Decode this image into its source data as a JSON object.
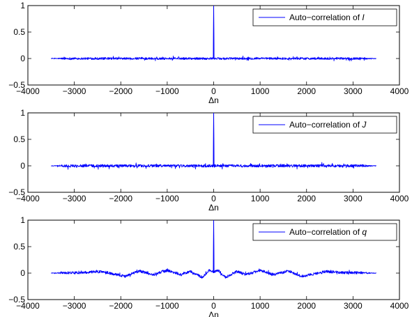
{
  "chart_data": [
    {
      "type": "line",
      "xlabel": "Δn",
      "ylabel": "",
      "xlim": [
        -4000,
        4000
      ],
      "ylim": [
        -0.5,
        1
      ],
      "xticks": [
        -4000,
        -3000,
        -2000,
        -1000,
        0,
        1000,
        2000,
        3000,
        4000
      ],
      "yticks": [
        -0.5,
        0,
        0.5,
        1
      ],
      "legend_position": "top-right",
      "series": [
        {
          "name": "Auto−correlation of I",
          "name_prefix": "Auto−correlation of ",
          "name_var": "I",
          "color": "#0000ff",
          "x_range": [
            -3500,
            3500
          ],
          "peak": {
            "x": 0,
            "y": 1
          },
          "noise_amplitude": 0.02,
          "noise_spikes": 0.035,
          "ripple_amplitude": 0
        }
      ]
    },
    {
      "type": "line",
      "xlabel": "Δn",
      "ylabel": "",
      "xlim": [
        -4000,
        4000
      ],
      "ylim": [
        -0.5,
        1
      ],
      "xticks": [
        -4000,
        -3000,
        -2000,
        -1000,
        0,
        1000,
        2000,
        3000,
        4000
      ],
      "yticks": [
        -0.5,
        0,
        0.5,
        1
      ],
      "legend_position": "top-right",
      "series": [
        {
          "name": "Auto−correlation of J",
          "name_prefix": "Auto−correlation of ",
          "name_var": "J",
          "color": "#0000ff",
          "x_range": [
            -3500,
            3500
          ],
          "peak": {
            "x": 0,
            "y": 1
          },
          "noise_amplitude": 0.025,
          "noise_spikes": 0.05,
          "ripple_amplitude": 0
        }
      ]
    },
    {
      "type": "line",
      "xlabel": "Δn",
      "ylabel": "",
      "xlim": [
        -4000,
        4000
      ],
      "ylim": [
        -0.5,
        1
      ],
      "xticks": [
        -4000,
        -3000,
        -2000,
        -1000,
        0,
        1000,
        2000,
        3000,
        4000
      ],
      "yticks": [
        -0.5,
        0,
        0.5,
        1
      ],
      "legend_position": "top-right",
      "series": [
        {
          "name": "Auto−correlation of q",
          "name_prefix": "Auto−correlation of ",
          "name_var": "q",
          "color": "#0000ff",
          "x_range": [
            -3500,
            3500
          ],
          "peak": {
            "x": 0,
            "y": 1
          },
          "noise_amplitude": 0.025,
          "noise_spikes": 0.03,
          "ripple_amplitude": 0.06,
          "ripple_points": [
            {
              "x": -3500,
              "y": 0.0
            },
            {
              "x": -2800,
              "y": 0.01
            },
            {
              "x": -2400,
              "y": 0.03
            },
            {
              "x": -2200,
              "y": -0.01
            },
            {
              "x": -1900,
              "y": -0.06
            },
            {
              "x": -1600,
              "y": 0.04
            },
            {
              "x": -1300,
              "y": -0.03
            },
            {
              "x": -1000,
              "y": 0.05
            },
            {
              "x": -700,
              "y": -0.03
            },
            {
              "x": -500,
              "y": 0.03
            },
            {
              "x": -250,
              "y": -0.08
            },
            {
              "x": -100,
              "y": 0.05
            },
            {
              "x": 0,
              "y": 0.02
            },
            {
              "x": 100,
              "y": 0.05
            },
            {
              "x": 250,
              "y": -0.08
            },
            {
              "x": 500,
              "y": 0.03
            },
            {
              "x": 700,
              "y": -0.03
            },
            {
              "x": 1000,
              "y": 0.05
            },
            {
              "x": 1300,
              "y": -0.03
            },
            {
              "x": 1600,
              "y": 0.04
            },
            {
              "x": 1900,
              "y": -0.06
            },
            {
              "x": 2200,
              "y": -0.01
            },
            {
              "x": 2400,
              "y": 0.03
            },
            {
              "x": 2800,
              "y": 0.01
            },
            {
              "x": 3500,
              "y": 0.0
            }
          ]
        }
      ]
    }
  ]
}
